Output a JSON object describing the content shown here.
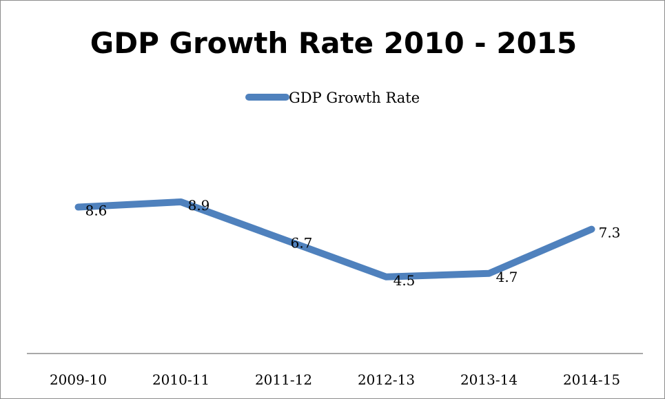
{
  "chart_data": {
    "type": "line",
    "title": "GDP Growth Rate 2010 - 2015",
    "categories": [
      "2009-10",
      "2010-11",
      "2011-12",
      "2012-13",
      "2013-14",
      "2014-15"
    ],
    "series": [
      {
        "name": "GDP Growth Rate",
        "values": [
          8.6,
          8.9,
          6.7,
          4.5,
          4.7,
          7.3
        ],
        "color": "#4f81bd"
      }
    ],
    "data_labels": [
      "8.6",
      "8.9",
      "6.7",
      "4.5",
      "4.7",
      "7.3"
    ],
    "ylim": [
      0,
      14
    ],
    "grid": false,
    "legend": "top"
  }
}
